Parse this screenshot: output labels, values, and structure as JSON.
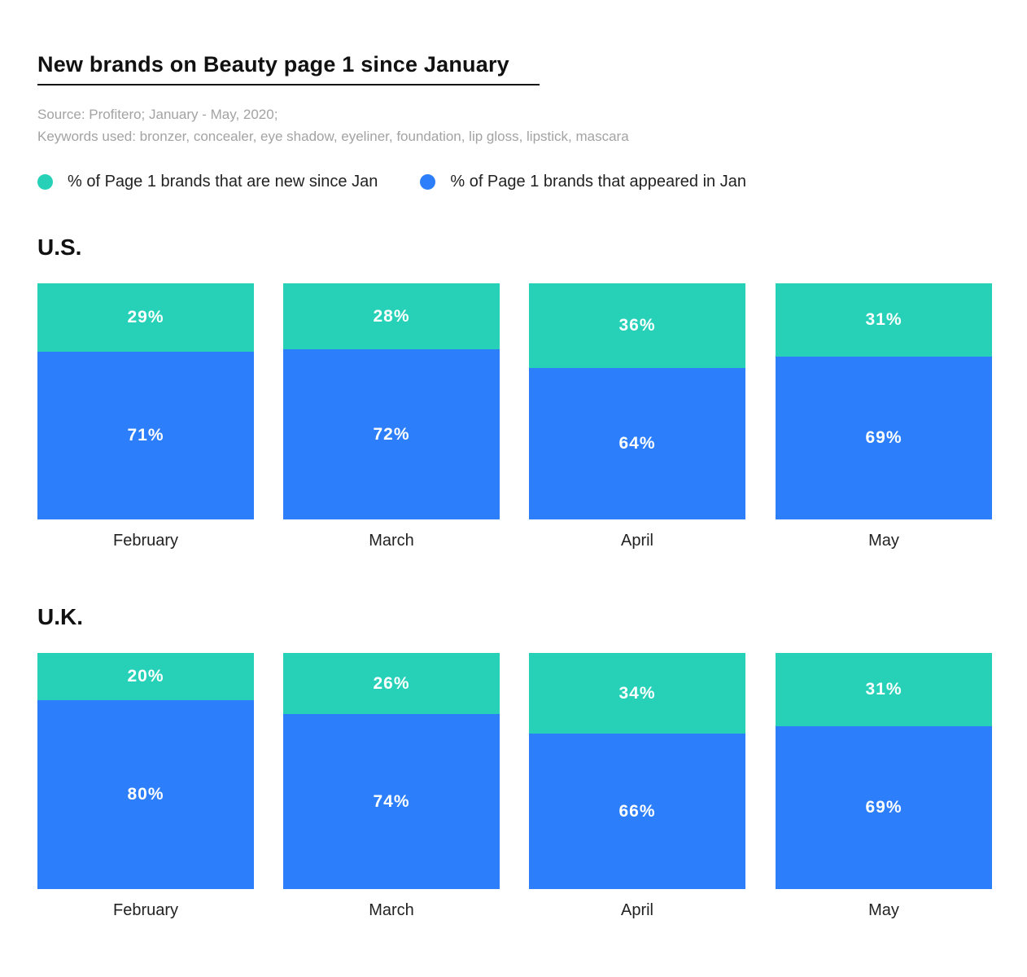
{
  "title": "New brands on Beauty page 1 since January",
  "source_line1": "Source: Profitero; January - May, 2020;",
  "source_line2": "Keywords used: bronzer, concealer, eye shadow, eyeliner, foundation, lip gloss, lipstick, mascara",
  "colors": {
    "new": "#26d1b8",
    "appeared": "#2c7efa"
  },
  "legend": [
    {
      "label": "% of Page 1 brands that are new since Jan",
      "color": "#26d1b8"
    },
    {
      "label": "% of Page 1 brands that appeared in Jan",
      "color": "#2c7efa"
    }
  ],
  "chart_data": [
    {
      "type": "bar",
      "title": "U.S.",
      "stacked": true,
      "normalized": true,
      "categories": [
        "February",
        "March",
        "April",
        "May"
      ],
      "series": [
        {
          "name": "% of Page 1 brands that are new since Jan",
          "values": [
            29,
            28,
            36,
            31
          ],
          "labels": [
            "29%",
            "28%",
            "36%",
            "31%"
          ]
        },
        {
          "name": "% of Page 1 brands that appeared in Jan",
          "values": [
            71,
            72,
            64,
            69
          ],
          "labels": [
            "71%",
            "72%",
            "64%",
            "69%"
          ]
        }
      ],
      "ylim": [
        0,
        100
      ]
    },
    {
      "type": "bar",
      "title": "U.K.",
      "stacked": true,
      "normalized": true,
      "categories": [
        "February",
        "March",
        "April",
        "May"
      ],
      "series": [
        {
          "name": "% of Page 1 brands that are new since Jan",
          "values": [
            20,
            26,
            34,
            31
          ],
          "labels": [
            "20%",
            "26%",
            "34%",
            "31%"
          ]
        },
        {
          "name": "% of Page 1 brands that appeared in Jan",
          "values": [
            80,
            74,
            66,
            69
          ],
          "labels": [
            "80%",
            "74%",
            "66%",
            "69%"
          ]
        }
      ],
      "ylim": [
        0,
        100
      ]
    }
  ]
}
